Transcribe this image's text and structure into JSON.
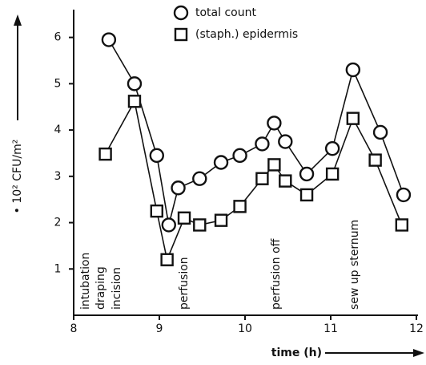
{
  "chart_data": {
    "type": "line",
    "ylabel": "• 10² CFU/m²",
    "xlabel": "time (h)",
    "xlim": [
      8,
      12
    ],
    "xticks": [
      8,
      9,
      10,
      11,
      12
    ],
    "ylim": [
      0,
      6.6
    ],
    "yticks": [
      1,
      2,
      3,
      4,
      5,
      6
    ],
    "series": [
      {
        "name": "total count",
        "marker": "circle",
        "color": "#111111",
        "x": [
          8.41,
          8.71,
          8.97,
          9.11,
          9.22,
          9.47,
          9.72,
          9.94,
          10.2,
          10.34,
          10.47,
          10.72,
          11.02,
          11.26,
          11.58,
          11.85
        ],
        "values": [
          5.95,
          5.0,
          3.45,
          1.95,
          2.75,
          2.95,
          3.3,
          3.45,
          3.7,
          4.15,
          3.75,
          3.05,
          3.6,
          5.3,
          3.95,
          2.6
        ]
      },
      {
        "name": "(staph.) epidermis",
        "marker": "square",
        "color": "#111111",
        "x": [
          8.37,
          8.71,
          8.97,
          9.09,
          9.29,
          9.47,
          9.72,
          9.94,
          10.2,
          10.34,
          10.47,
          10.72,
          11.02,
          11.26,
          11.52,
          11.83
        ],
        "values": [
          3.48,
          4.62,
          2.25,
          1.2,
          2.1,
          1.95,
          2.05,
          2.35,
          2.95,
          3.25,
          2.9,
          2.6,
          3.05,
          4.25,
          3.35,
          1.95
        ]
      }
    ],
    "annotations": [
      "intubation",
      "draping",
      "incision",
      "perfusion",
      "perfusion off",
      "sew up sternum"
    ]
  }
}
